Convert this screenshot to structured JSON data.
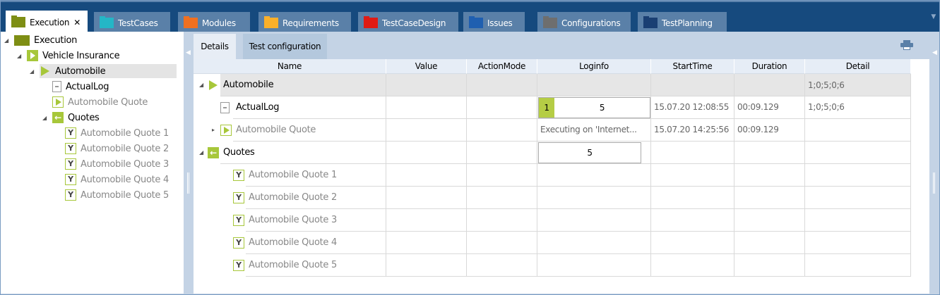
{
  "tabs": [
    {
      "label": "Execution",
      "color": "#7e8e14",
      "active": true
    },
    {
      "label": "TestCases",
      "color": "#24b6c6"
    },
    {
      "label": "Modules",
      "color": "#f07020"
    },
    {
      "label": "Requirements",
      "color": "#fbb02a"
    },
    {
      "label": "TestCaseDesign",
      "color": "#e01b14"
    },
    {
      "label": "Issues",
      "color": "#1f5fb0"
    },
    {
      "label": "Configurations",
      "color": "#6e6e6e"
    },
    {
      "label": "TestPlanning",
      "color": "#1a3f73"
    }
  ],
  "close_glyph": "✕",
  "tree": [
    {
      "label": "Execution",
      "icon": "folder-icon"
    },
    {
      "label": "Vehicle Insurance",
      "icon": "execution-list-icon"
    },
    {
      "label": "Automobile",
      "icon": "execution-entry-icon",
      "selected": true
    },
    {
      "label": "ActualLog",
      "icon": "log-icon"
    },
    {
      "label": "Automobile Quote",
      "icon": "testcase-icon",
      "muted": true
    },
    {
      "label": "Quotes",
      "icon": "folder-back-icon"
    },
    {
      "label": "Automobile Quote 1",
      "icon": "testcase-instance-icon",
      "muted": true
    },
    {
      "label": "Automobile Quote 2",
      "icon": "testcase-instance-icon",
      "muted": true
    },
    {
      "label": "Automobile Quote 3",
      "icon": "testcase-instance-icon",
      "muted": true
    },
    {
      "label": "Automobile Quote 4",
      "icon": "testcase-instance-icon",
      "muted": true
    },
    {
      "label": "Automobile Quote 5",
      "icon": "testcase-instance-icon",
      "muted": true
    }
  ],
  "detail_tabs": [
    {
      "label": "Details"
    },
    {
      "label": "Test configuration"
    }
  ],
  "columns": [
    "Name",
    "Value",
    "ActionMode",
    "Loginfo",
    "StartTime",
    "Duration",
    "Detail"
  ],
  "rows": [
    {
      "name": "Automobile",
      "icon": "execution-entry-icon",
      "loginfo": "",
      "start": "",
      "duration": "",
      "detail": "1;0;5;0;6"
    },
    {
      "name": "ActualLog",
      "icon": "log-icon",
      "loginfo_badge": "1",
      "loginfo": "5",
      "start": "15.07.20 12:08:55",
      "duration": "00:09.129",
      "detail": "1;0;5;0;6"
    },
    {
      "name": "Automobile Quote",
      "icon": "testcase-icon",
      "loginfo": "Executing on 'Internet...",
      "start": "15.07.20 14:25:56",
      "duration": "00:09.129",
      "detail": ""
    },
    {
      "name": "Quotes",
      "icon": "folder-back-icon",
      "loginfo": "5",
      "start": "",
      "duration": "",
      "detail": ""
    },
    {
      "name": "Automobile Quote 1",
      "icon": "testcase-instance-icon"
    },
    {
      "name": "Automobile Quote 2",
      "icon": "testcase-instance-icon"
    },
    {
      "name": "Automobile Quote 3",
      "icon": "testcase-instance-icon"
    },
    {
      "name": "Automobile Quote 4",
      "icon": "testcase-instance-icon"
    },
    {
      "name": "Automobile Quote 5",
      "icon": "testcase-instance-icon"
    }
  ],
  "colors": {
    "accent": "#a7c73a",
    "titlebar": "#164a7e"
  }
}
